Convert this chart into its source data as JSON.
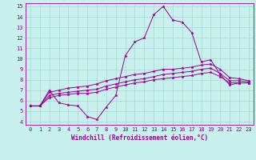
{
  "xlabel": "Windchill (Refroidissement éolien,°C)",
  "xlim": [
    -0.5,
    23.5
  ],
  "ylim": [
    3.7,
    15.3
  ],
  "xticks": [
    0,
    1,
    2,
    3,
    4,
    5,
    6,
    7,
    8,
    9,
    10,
    11,
    12,
    13,
    14,
    15,
    16,
    17,
    18,
    19,
    20,
    21,
    22,
    23
  ],
  "yticks": [
    4,
    5,
    6,
    7,
    8,
    9,
    10,
    11,
    12,
    13,
    14,
    15
  ],
  "background_color": "#c8f0ec",
  "grid_color": "#a8d8d4",
  "line_color": "#990099",
  "series": [
    [
      5.5,
      5.5,
      7.0,
      5.8,
      5.6,
      5.5,
      4.5,
      4.2,
      5.4,
      6.5,
      10.3,
      11.6,
      12.0,
      14.2,
      15.0,
      13.7,
      13.5,
      12.5,
      9.7,
      9.9,
      8.5,
      7.5,
      7.7,
      7.7
    ],
    [
      5.5,
      5.5,
      6.3,
      6.5,
      6.6,
      6.7,
      6.7,
      6.8,
      7.1,
      7.3,
      7.5,
      7.7,
      7.8,
      8.0,
      8.1,
      8.2,
      8.3,
      8.4,
      8.6,
      8.7,
      8.3,
      7.7,
      7.7,
      7.7
    ],
    [
      5.5,
      5.5,
      6.5,
      6.7,
      6.8,
      6.9,
      7.0,
      7.1,
      7.4,
      7.6,
      7.8,
      8.0,
      8.1,
      8.3,
      8.5,
      8.6,
      8.7,
      8.8,
      9.0,
      9.1,
      8.6,
      7.9,
      7.9,
      7.8
    ],
    [
      5.5,
      5.5,
      6.8,
      7.0,
      7.2,
      7.3,
      7.4,
      7.6,
      7.9,
      8.1,
      8.3,
      8.5,
      8.6,
      8.8,
      9.0,
      9.0,
      9.1,
      9.2,
      9.4,
      9.5,
      9.0,
      8.2,
      8.1,
      7.9
    ]
  ],
  "marker": "*",
  "markersize": 2.5,
  "linewidth": 0.7,
  "tick_labelsize": 5.0,
  "xlabel_fontsize": 5.5
}
